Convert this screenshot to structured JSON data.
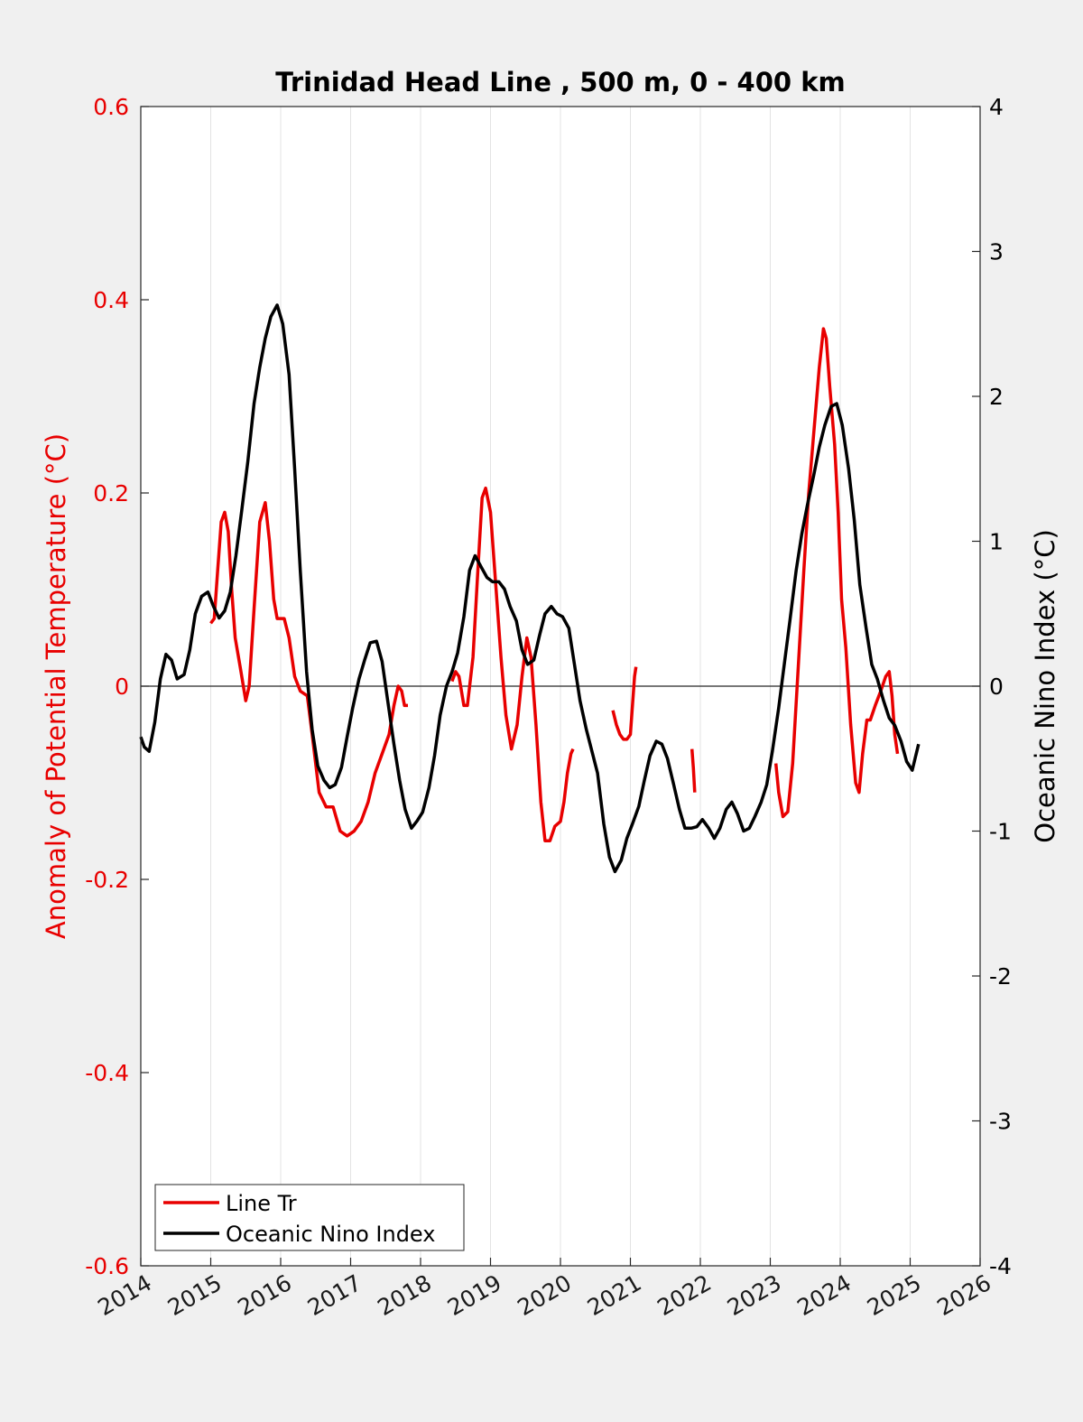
{
  "chart_data": {
    "type": "line",
    "title": "Trinidad Head Line , 500 m, 0 - 400 km",
    "xlim": [
      2014,
      2026
    ],
    "xticks": [
      "2014",
      "2015",
      "2016",
      "2017",
      "2018",
      "2019",
      "2020",
      "2021",
      "2022",
      "2023",
      "2024",
      "2025",
      "2026"
    ],
    "left_axis": {
      "label": "Anomaly of Potential Temperature (°C)",
      "ylim": [
        -0.6,
        0.6
      ],
      "ticks": [
        "-0.6",
        "-0.4",
        "-0.2",
        "0",
        "0.2",
        "0.4",
        "0.6"
      ],
      "color": "#e80000"
    },
    "right_axis": {
      "label": "Oceanic Nino Index (°C)",
      "ylim": [
        -4,
        4
      ],
      "ticks": [
        "-4",
        "-3",
        "-2",
        "-1",
        "0",
        "1",
        "2",
        "3",
        "4"
      ],
      "color": "#000000"
    },
    "grid": "vertical",
    "zero_line": true,
    "legend": {
      "placement": "bottom-left",
      "entries": [
        "Line Tr",
        "Oceanic Nino Index"
      ]
    },
    "series": [
      {
        "name": "Line Tr",
        "axis": "left",
        "color": "#e80000",
        "segments": [
          [
            [
              2015.0,
              0.065
            ],
            [
              2015.05,
              0.07
            ],
            [
              2015.1,
              0.12
            ],
            [
              2015.15,
              0.17
            ],
            [
              2015.2,
              0.18
            ],
            [
              2015.25,
              0.16
            ],
            [
              2015.3,
              0.1
            ],
            [
              2015.35,
              0.05
            ],
            [
              2015.42,
              0.02
            ],
            [
              2015.5,
              -0.015
            ],
            [
              2015.55,
              0.0
            ],
            [
              2015.62,
              0.08
            ],
            [
              2015.7,
              0.17
            ],
            [
              2015.78,
              0.19
            ],
            [
              2015.84,
              0.15
            ],
            [
              2015.9,
              0.09
            ],
            [
              2015.95,
              0.07
            ],
            [
              2016.05,
              0.07
            ],
            [
              2016.12,
              0.05
            ],
            [
              2016.2,
              0.01
            ],
            [
              2016.28,
              -0.005
            ],
            [
              2016.38,
              -0.01
            ],
            [
              2016.45,
              -0.05
            ],
            [
              2016.55,
              -0.11
            ],
            [
              2016.65,
              -0.125
            ],
            [
              2016.75,
              -0.125
            ],
            [
              2016.85,
              -0.15
            ],
            [
              2016.95,
              -0.155
            ],
            [
              2017.05,
              -0.15
            ],
            [
              2017.15,
              -0.14
            ],
            [
              2017.25,
              -0.12
            ],
            [
              2017.35,
              -0.09
            ],
            [
              2017.45,
              -0.07
            ],
            [
              2017.55,
              -0.05
            ],
            [
              2017.62,
              -0.02
            ],
            [
              2017.68,
              0.0
            ],
            [
              2017.73,
              -0.005
            ],
            [
              2017.77,
              -0.02
            ],
            [
              2017.82,
              -0.02
            ]
          ],
          [
            [
              2018.45,
              0.005
            ],
            [
              2018.5,
              0.015
            ],
            [
              2018.55,
              0.01
            ],
            [
              2018.62,
              -0.02
            ],
            [
              2018.67,
              -0.02
            ],
            [
              2018.75,
              0.03
            ],
            [
              2018.82,
              0.12
            ],
            [
              2018.88,
              0.195
            ],
            [
              2018.93,
              0.205
            ],
            [
              2019.0,
              0.18
            ],
            [
              2019.08,
              0.1
            ],
            [
              2019.15,
              0.03
            ],
            [
              2019.22,
              -0.03
            ],
            [
              2019.3,
              -0.065
            ],
            [
              2019.38,
              -0.04
            ],
            [
              2019.45,
              0.01
            ],
            [
              2019.52,
              0.05
            ],
            [
              2019.58,
              0.03
            ],
            [
              2019.65,
              -0.04
            ],
            [
              2019.72,
              -0.12
            ],
            [
              2019.78,
              -0.16
            ],
            [
              2019.85,
              -0.16
            ],
            [
              2019.92,
              -0.145
            ],
            [
              2020.0,
              -0.14
            ],
            [
              2020.05,
              -0.12
            ],
            [
              2020.1,
              -0.09
            ],
            [
              2020.15,
              -0.07
            ],
            [
              2020.18,
              -0.065
            ]
          ],
          [
            [
              2020.75,
              -0.025
            ],
            [
              2020.8,
              -0.04
            ],
            [
              2020.85,
              -0.05
            ],
            [
              2020.9,
              -0.055
            ],
            [
              2020.95,
              -0.055
            ],
            [
              2021.0,
              -0.05
            ],
            [
              2021.03,
              -0.02
            ],
            [
              2021.06,
              0.01
            ],
            [
              2021.08,
              0.02
            ]
          ],
          [
            [
              2021.88,
              -0.065
            ],
            [
              2021.9,
              -0.085
            ],
            [
              2021.92,
              -0.11
            ]
          ],
          [
            [
              2023.08,
              -0.08
            ],
            [
              2023.12,
              -0.11
            ],
            [
              2023.18,
              -0.135
            ],
            [
              2023.25,
              -0.13
            ],
            [
              2023.32,
              -0.08
            ],
            [
              2023.4,
              0.02
            ],
            [
              2023.48,
              0.12
            ],
            [
              2023.55,
              0.2
            ],
            [
              2023.62,
              0.26
            ],
            [
              2023.7,
              0.33
            ],
            [
              2023.76,
              0.37
            ],
            [
              2023.8,
              0.36
            ],
            [
              2023.85,
              0.31
            ],
            [
              2023.92,
              0.25
            ],
            [
              2023.97,
              0.18
            ],
            [
              2024.02,
              0.09
            ],
            [
              2024.08,
              0.04
            ],
            [
              2024.15,
              -0.04
            ],
            [
              2024.22,
              -0.1
            ],
            [
              2024.27,
              -0.11
            ],
            [
              2024.32,
              -0.07
            ],
            [
              2024.38,
              -0.035
            ],
            [
              2024.43,
              -0.035
            ],
            [
              2024.5,
              -0.02
            ],
            [
              2024.58,
              -0.005
            ],
            [
              2024.65,
              0.01
            ],
            [
              2024.7,
              0.015
            ],
            [
              2024.74,
              -0.01
            ],
            [
              2024.78,
              -0.05
            ],
            [
              2024.82,
              -0.07
            ]
          ]
        ]
      },
      {
        "name": "Oceanic Nino Index",
        "axis": "right",
        "color": "#000000",
        "segments": [
          [
            [
              2014.0,
              -0.35
            ],
            [
              2014.05,
              -0.42
            ],
            [
              2014.12,
              -0.45
            ],
            [
              2014.2,
              -0.25
            ],
            [
              2014.28,
              0.05
            ],
            [
              2014.36,
              0.22
            ],
            [
              2014.44,
              0.18
            ],
            [
              2014.52,
              0.05
            ],
            [
              2014.62,
              0.08
            ],
            [
              2014.7,
              0.25
            ],
            [
              2014.78,
              0.5
            ],
            [
              2014.87,
              0.62
            ],
            [
              2014.96,
              0.65
            ],
            [
              2015.04,
              0.55
            ],
            [
              2015.12,
              0.47
            ],
            [
              2015.2,
              0.52
            ],
            [
              2015.28,
              0.65
            ],
            [
              2015.36,
              0.9
            ],
            [
              2015.44,
              1.2
            ],
            [
              2015.53,
              1.55
            ],
            [
              2015.62,
              1.95
            ],
            [
              2015.7,
              2.2
            ],
            [
              2015.78,
              2.4
            ],
            [
              2015.86,
              2.55
            ],
            [
              2015.95,
              2.63
            ],
            [
              2016.03,
              2.5
            ],
            [
              2016.12,
              2.15
            ],
            [
              2016.2,
              1.5
            ],
            [
              2016.28,
              0.8
            ],
            [
              2016.37,
              0.1
            ],
            [
              2016.45,
              -0.3
            ],
            [
              2016.53,
              -0.55
            ],
            [
              2016.62,
              -0.65
            ],
            [
              2016.7,
              -0.7
            ],
            [
              2016.78,
              -0.68
            ],
            [
              2016.87,
              -0.56
            ],
            [
              2016.95,
              -0.35
            ],
            [
              2017.03,
              -0.15
            ],
            [
              2017.12,
              0.05
            ],
            [
              2017.2,
              0.18
            ],
            [
              2017.28,
              0.3
            ],
            [
              2017.37,
              0.31
            ],
            [
              2017.45,
              0.17
            ],
            [
              2017.53,
              -0.1
            ],
            [
              2017.62,
              -0.4
            ],
            [
              2017.7,
              -0.65
            ],
            [
              2017.78,
              -0.85
            ],
            [
              2017.87,
              -0.98
            ],
            [
              2017.95,
              -0.93
            ],
            [
              2018.03,
              -0.87
            ],
            [
              2018.12,
              -0.7
            ],
            [
              2018.2,
              -0.48
            ],
            [
              2018.28,
              -0.2
            ],
            [
              2018.37,
              0.0
            ],
            [
              2018.45,
              0.1
            ],
            [
              2018.53,
              0.23
            ],
            [
              2018.62,
              0.48
            ],
            [
              2018.7,
              0.8
            ],
            [
              2018.78,
              0.9
            ],
            [
              2018.87,
              0.82
            ],
            [
              2018.95,
              0.75
            ],
            [
              2019.03,
              0.72
            ],
            [
              2019.12,
              0.72
            ],
            [
              2019.2,
              0.67
            ],
            [
              2019.28,
              0.55
            ],
            [
              2019.37,
              0.45
            ],
            [
              2019.45,
              0.25
            ],
            [
              2019.53,
              0.15
            ],
            [
              2019.62,
              0.18
            ],
            [
              2019.7,
              0.35
            ],
            [
              2019.78,
              0.5
            ],
            [
              2019.87,
              0.55
            ],
            [
              2019.95,
              0.5
            ],
            [
              2020.03,
              0.48
            ],
            [
              2020.12,
              0.4
            ],
            [
              2020.2,
              0.15
            ],
            [
              2020.28,
              -0.1
            ],
            [
              2020.37,
              -0.3
            ],
            [
              2020.45,
              -0.45
            ],
            [
              2020.53,
              -0.6
            ],
            [
              2020.62,
              -0.95
            ],
            [
              2020.7,
              -1.18
            ],
            [
              2020.78,
              -1.28
            ],
            [
              2020.87,
              -1.2
            ],
            [
              2020.95,
              -1.05
            ],
            [
              2021.03,
              -0.95
            ],
            [
              2021.12,
              -0.83
            ],
            [
              2021.2,
              -0.65
            ],
            [
              2021.28,
              -0.48
            ],
            [
              2021.37,
              -0.38
            ],
            [
              2021.45,
              -0.4
            ],
            [
              2021.53,
              -0.5
            ],
            [
              2021.62,
              -0.68
            ],
            [
              2021.7,
              -0.85
            ],
            [
              2021.78,
              -0.98
            ],
            [
              2021.87,
              -0.98
            ],
            [
              2021.95,
              -0.97
            ],
            [
              2022.03,
              -0.92
            ],
            [
              2022.12,
              -0.98
            ],
            [
              2022.2,
              -1.05
            ],
            [
              2022.28,
              -0.98
            ],
            [
              2022.37,
              -0.85
            ],
            [
              2022.45,
              -0.8
            ],
            [
              2022.53,
              -0.88
            ],
            [
              2022.62,
              -1.0
            ],
            [
              2022.7,
              -0.98
            ],
            [
              2022.78,
              -0.9
            ],
            [
              2022.87,
              -0.8
            ],
            [
              2022.95,
              -0.68
            ],
            [
              2023.03,
              -0.45
            ],
            [
              2023.12,
              -0.15
            ],
            [
              2023.2,
              0.15
            ],
            [
              2023.28,
              0.45
            ],
            [
              2023.37,
              0.8
            ],
            [
              2023.45,
              1.05
            ],
            [
              2023.53,
              1.25
            ],
            [
              2023.62,
              1.45
            ],
            [
              2023.7,
              1.65
            ],
            [
              2023.78,
              1.8
            ],
            [
              2023.87,
              1.93
            ],
            [
              2023.95,
              1.95
            ],
            [
              2024.03,
              1.8
            ],
            [
              2024.12,
              1.5
            ],
            [
              2024.2,
              1.15
            ],
            [
              2024.28,
              0.7
            ],
            [
              2024.37,
              0.4
            ],
            [
              2024.45,
              0.15
            ],
            [
              2024.53,
              0.05
            ],
            [
              2024.62,
              -0.1
            ],
            [
              2024.7,
              -0.22
            ],
            [
              2024.78,
              -0.27
            ],
            [
              2024.87,
              -0.38
            ],
            [
              2024.95,
              -0.52
            ],
            [
              2025.03,
              -0.58
            ],
            [
              2025.12,
              -0.4
            ]
          ]
        ]
      }
    ]
  }
}
